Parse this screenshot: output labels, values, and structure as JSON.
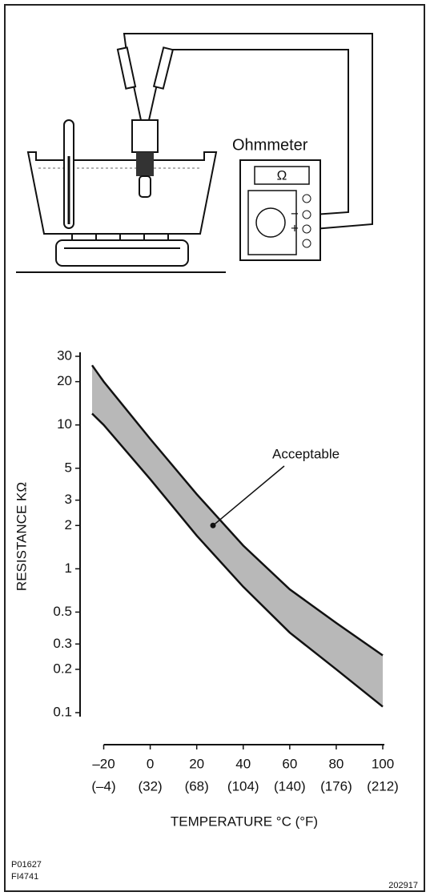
{
  "illustration": {
    "meter_label": "Ohmmeter",
    "display": "Ω",
    "minus": "−",
    "plus": "+"
  },
  "chart_data": {
    "type": "band",
    "xlabel": "TEMPERATURE °C (°F)",
    "ylabel": "RESISTANCE KΩ",
    "ylog": true,
    "ylim": [
      0.1,
      30
    ],
    "yticks": [
      0.1,
      0.2,
      0.3,
      0.5,
      1,
      2,
      3,
      5,
      10,
      20,
      30
    ],
    "xlim": [
      -25,
      100
    ],
    "xticks": [
      {
        "value": -20,
        "label": "–20"
      },
      0,
      20,
      40,
      60,
      80,
      100
    ],
    "xtick_sublabels": [
      "(–4)",
      "(32)",
      "(68)",
      "(104)",
      "(140)",
      "(176)",
      "(212)"
    ],
    "x": [
      -25,
      -20,
      0,
      20,
      40,
      60,
      80,
      100
    ],
    "series": [
      {
        "values": [
          26,
          20,
          8,
          3.3,
          1.45,
          0.72,
          0.42,
          0.25
        ]
      },
      {
        "values": [
          12,
          10,
          4.2,
          1.7,
          0.75,
          0.36,
          0.2,
          0.11
        ]
      }
    ],
    "color": "#b8b8b8",
    "annotation": {
      "text": "Acceptable",
      "x": 27,
      "y": 2
    }
  },
  "footer": {
    "code1": "P01627",
    "code2": "FI4741",
    "code3": "202917"
  }
}
